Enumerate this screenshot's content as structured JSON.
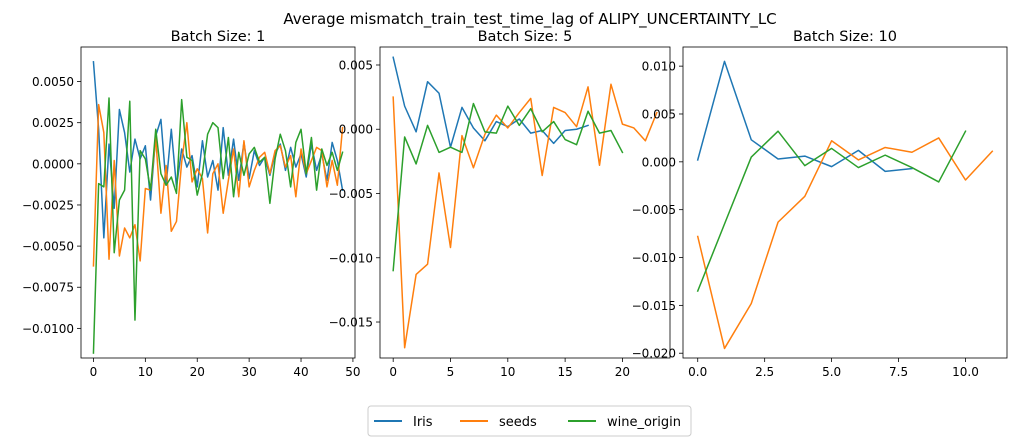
{
  "figure": {
    "suptitle": "Average mismatch_train_test_time_lag of ALIPY_UNCERTAINTY_LC"
  },
  "legend": {
    "placement": "bottom-center",
    "entries": [
      {
        "name": "Iris",
        "color": "#1f77b4"
      },
      {
        "name": "seeds",
        "color": "#ff7f0e"
      },
      {
        "name": "wine_origin",
        "color": "#2ca02c"
      }
    ]
  },
  "chart_data": [
    {
      "type": "line",
      "title": "Batch Size: 1",
      "xlabel": "",
      "ylabel": "",
      "xlim": [
        -2.4,
        50.4
      ],
      "ylim": [
        -0.0118,
        0.0071
      ],
      "xticks": [
        0,
        10,
        20,
        30,
        40,
        50
      ],
      "xtick_labels": [
        "0",
        "10",
        "20",
        "30",
        "40",
        "50"
      ],
      "yticks": [
        -0.01,
        -0.0075,
        -0.005,
        -0.0025,
        0.0,
        0.0025,
        0.005
      ],
      "ytick_labels": [
        "−0.0100",
        "−0.0075",
        "−0.0050",
        "−0.0025",
        "0.0000",
        "0.0025",
        "0.0050"
      ],
      "grid": false,
      "series": [
        {
          "name": "Iris",
          "color": "#1f77b4",
          "x": [
            0,
            1,
            2,
            3,
            4,
            5,
            6,
            7,
            8,
            9,
            10,
            11,
            12,
            13,
            14,
            15,
            16,
            17,
            18,
            19,
            20,
            21,
            22,
            23,
            24,
            25,
            26,
            27,
            28,
            29,
            30,
            31,
            32,
            33,
            34,
            35,
            36,
            37,
            38,
            39,
            40,
            41,
            42,
            43,
            44,
            45,
            46,
            47,
            48
          ],
          "y": [
            0.0062,
            0.0021,
            -0.0045,
            0.0012,
            -0.0027,
            0.0033,
            0.0019,
            -0.0005,
            0.0015,
            0.0003,
            0.0011,
            -0.0022,
            0.0017,
            0.0027,
            -0.0013,
            0.0021,
            -0.0014,
            0.0009,
            -0.0002,
            0.0005,
            -0.0014,
            0.0014,
            -0.0008,
            0.0002,
            -0.0016,
            0.0022,
            -0.0007,
            0.0015,
            -0.001,
            0.0013,
            -0.0009,
            0.0008,
            -0.0001,
            0.0004,
            -0.0007,
            0.0006,
            0.0012,
            -0.0004,
            0.001,
            -0.0002,
            0.0006,
            -0.0008,
            0.0012,
            -0.0004,
            0.0006,
            -0.001,
            0.0013,
            0.0002,
            -0.0016
          ]
        },
        {
          "name": "seeds",
          "color": "#ff7f0e",
          "x": [
            0,
            1,
            2,
            3,
            4,
            5,
            6,
            7,
            8,
            9,
            10,
            11,
            12,
            13,
            14,
            15,
            16,
            17,
            18,
            19,
            20,
            21,
            22,
            23,
            24,
            25,
            26,
            27,
            28,
            29,
            30,
            31,
            32,
            33,
            34,
            35,
            36,
            37,
            38,
            39,
            40,
            41,
            42,
            43,
            44,
            45,
            46,
            47,
            48
          ],
          "y": [
            -0.0062,
            0.0036,
            0.0019,
            -0.0058,
            0.0002,
            -0.0056,
            -0.0039,
            -0.0045,
            -0.0037,
            -0.0059,
            -0.0015,
            -0.0016,
            0.0016,
            -0.003,
            -0.0001,
            -0.0041,
            -0.0035,
            0.0001,
            0.0025,
            -0.0011,
            -0.0003,
            -0.0009,
            -0.0042,
            -0.0006,
            0.0,
            -0.003,
            -0.001,
            0.0009,
            -0.002,
            0.0014,
            -0.0014,
            -0.0004,
            0.0004,
            0.0007,
            -0.0006,
            0.0008,
            0.0011,
            -0.0002,
            0.0005,
            -0.002,
            0.0009,
            -0.0006,
            0.0002,
            0.001,
            0.0008,
            -0.0014,
            0.0002,
            -0.0013,
            0.0022
          ]
        },
        {
          "name": "wine_origin",
          "color": "#2ca02c",
          "x": [
            0,
            1,
            2,
            3,
            4,
            5,
            6,
            7,
            8,
            9,
            10,
            11,
            12,
            13,
            14,
            15,
            16,
            17,
            18,
            19,
            20,
            21,
            22,
            23,
            24,
            25,
            26,
            27,
            28,
            29,
            30,
            31,
            32,
            33,
            34,
            35,
            36,
            37,
            38,
            39,
            40,
            41,
            42,
            43,
            44,
            45,
            46,
            47,
            48
          ],
          "y": [
            -0.0115,
            -0.0012,
            -0.0014,
            0.004,
            -0.0054,
            -0.0022,
            -0.0016,
            0.0038,
            -0.0095,
            0.0008,
            0.0003,
            -0.0016,
            0.0021,
            -0.0006,
            -0.0013,
            -0.0008,
            -0.0018,
            0.0039,
            0.0004,
            0.0002,
            -0.0019,
            -0.0006,
            0.0018,
            0.0025,
            0.0022,
            -0.0009,
            0.0016,
            -0.002,
            0.0007,
            -0.0007,
            0.0006,
            0.001,
            0.0001,
            0.0004,
            -0.0024,
            0.0003,
            0.0018,
            0.0008,
            -0.0014,
            0.0013,
            0.0021,
            -0.0006,
            0.0016,
            -0.0016,
            0.0009,
            -0.0001,
            0.0007,
            -0.0004,
            0.0007
          ]
        }
      ]
    },
    {
      "type": "line",
      "title": "Batch Size: 5",
      "xlabel": "",
      "ylabel": "",
      "xlim": [
        -1.15,
        24.15
      ],
      "ylim": [
        -0.0178,
        0.0064
      ],
      "xticks": [
        0,
        5,
        10,
        15,
        20
      ],
      "xtick_labels": [
        "0",
        "5",
        "10",
        "15",
        "20"
      ],
      "yticks": [
        -0.015,
        -0.01,
        -0.005,
        0.0,
        0.005
      ],
      "ytick_labels": [
        "−0.015",
        "−0.010",
        "−0.005",
        "0.000",
        "0.005"
      ],
      "grid": false,
      "series": [
        {
          "name": "Iris",
          "color": "#1f77b4",
          "x": [
            0,
            1,
            2,
            3,
            4,
            5,
            6,
            7,
            8,
            9,
            10,
            11,
            12,
            13,
            14,
            15,
            16,
            17
          ],
          "y": [
            0.0056,
            0.0018,
            -0.0002,
            0.0037,
            0.0028,
            -0.0014,
            0.0017,
            0.0001,
            -0.0009,
            0.0006,
            0.0002,
            0.0008,
            -0.0003,
            -0.0001,
            -0.0011,
            -0.0001,
            0.0,
            0.0003
          ]
        },
        {
          "name": "seeds",
          "color": "#ff7f0e",
          "x": [
            0,
            1,
            2,
            3,
            4,
            5,
            6,
            7,
            8,
            9,
            10,
            11,
            12,
            13,
            14,
            15,
            16,
            17,
            18,
            19,
            20,
            21,
            22,
            23
          ],
          "y": [
            0.0025,
            -0.017,
            -0.0113,
            -0.0105,
            -0.0034,
            -0.0092,
            -0.0005,
            -0.003,
            -0.0004,
            0.0011,
            0.0001,
            0.0013,
            0.0024,
            -0.0036,
            0.0017,
            0.0013,
            0.0002,
            0.0033,
            -0.0028,
            0.0035,
            0.0004,
            0.0001,
            -0.0009,
            0.0013
          ]
        },
        {
          "name": "wine_origin",
          "color": "#2ca02c",
          "x": [
            0,
            1,
            2,
            3,
            4,
            5,
            6,
            7,
            8,
            9,
            10,
            11,
            12,
            13,
            14,
            15,
            16,
            17,
            18,
            19,
            20
          ],
          "y": [
            -0.011,
            -0.0006,
            -0.0027,
            0.0003,
            -0.0018,
            -0.0014,
            -0.0018,
            0.002,
            -0.0002,
            -0.0003,
            0.0018,
            0.0003,
            0.0016,
            -0.0002,
            0.0006,
            -0.0008,
            -0.0012,
            0.0014,
            -0.0003,
            -0.0001,
            -0.0018
          ]
        }
      ]
    },
    {
      "type": "line",
      "title": "Batch Size: 10",
      "xlabel": "",
      "ylabel": "",
      "xlim": [
        -0.55,
        11.55
      ],
      "ylim": [
        -0.0205,
        0.012
      ],
      "xticks": [
        0.0,
        2.5,
        5.0,
        7.5,
        10.0
      ],
      "xtick_labels": [
        "0.0",
        "2.5",
        "5.0",
        "7.5",
        "10.0"
      ],
      "yticks": [
        -0.02,
        -0.015,
        -0.01,
        -0.005,
        0.0,
        0.005,
        0.01
      ],
      "ytick_labels": [
        "−0.020",
        "−0.015",
        "−0.010",
        "−0.005",
        "0.000",
        "0.005",
        "0.010"
      ],
      "grid": false,
      "series": [
        {
          "name": "Iris",
          "color": "#1f77b4",
          "x": [
            0,
            1,
            2,
            3,
            4,
            5,
            6,
            7,
            8
          ],
          "y": [
            0.0002,
            0.0105,
            0.0023,
            0.0003,
            0.0006,
            -0.0005,
            0.0012,
            -0.001,
            -0.0007
          ]
        },
        {
          "name": "seeds",
          "color": "#ff7f0e",
          "x": [
            0,
            1,
            2,
            3,
            4,
            5,
            6,
            7,
            8,
            9,
            10,
            11
          ],
          "y": [
            -0.0078,
            -0.0195,
            -0.0148,
            -0.0063,
            -0.0036,
            0.0022,
            0.0002,
            0.0015,
            0.001,
            0.0025,
            -0.0019,
            0.0011
          ]
        },
        {
          "name": "wine_origin",
          "color": "#2ca02c",
          "x": [
            0,
            1,
            2,
            3,
            4,
            5,
            6,
            7,
            8,
            9,
            10
          ],
          "y": [
            -0.0135,
            -0.0065,
            0.0005,
            0.0032,
            -0.0004,
            0.0014,
            -0.0006,
            0.0007,
            -0.0006,
            -0.0021,
            0.0032
          ]
        }
      ]
    }
  ]
}
